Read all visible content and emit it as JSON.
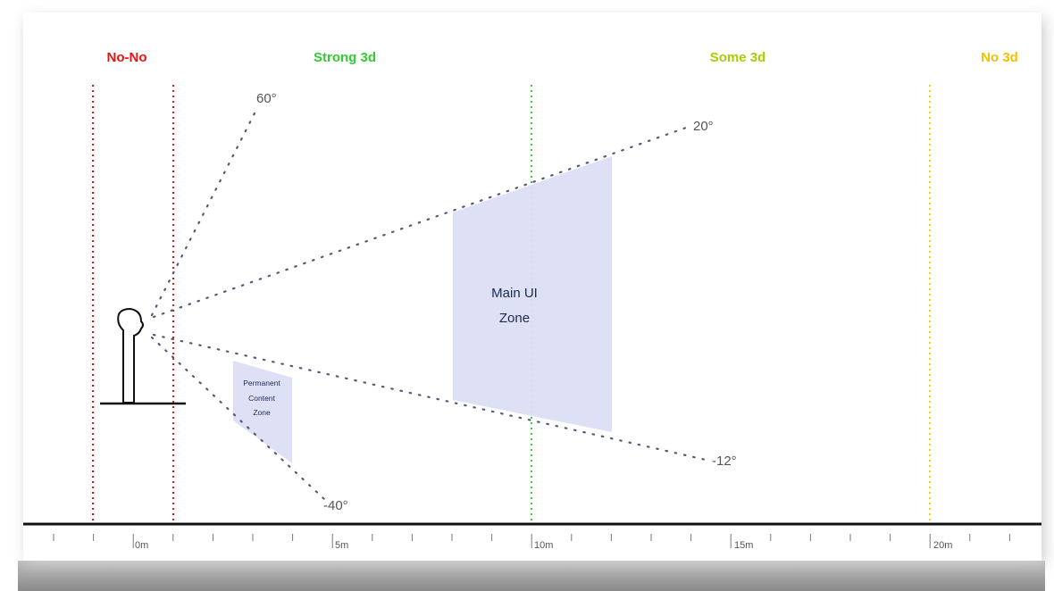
{
  "zones": [
    {
      "label": "No-No",
      "color": "#ee1111"
    },
    {
      "label": "Strong 3d",
      "color": "#33cc33"
    },
    {
      "label": "Some 3d",
      "color": "#aacc00"
    },
    {
      "label": "No 3d",
      "color": "#f2c200"
    }
  ],
  "rays": [
    {
      "label": "60°"
    },
    {
      "label": "20°"
    },
    {
      "label": "-12°"
    },
    {
      "label": "-40°"
    }
  ],
  "regions": {
    "main_ui": {
      "line1": "Main UI",
      "line2": "Zone",
      "fill": "#dcdff5"
    },
    "permanent": {
      "line1": "Permanent",
      "line2": "Content",
      "line3": "Zone",
      "fill": "#dcdff5"
    }
  },
  "axis": {
    "labels": [
      "0m",
      "5m",
      "10m",
      "15m",
      "20m"
    ]
  },
  "colors": {
    "figure": "#111111",
    "ray": "#555a7a",
    "shadow": "#9a9a9a"
  }
}
